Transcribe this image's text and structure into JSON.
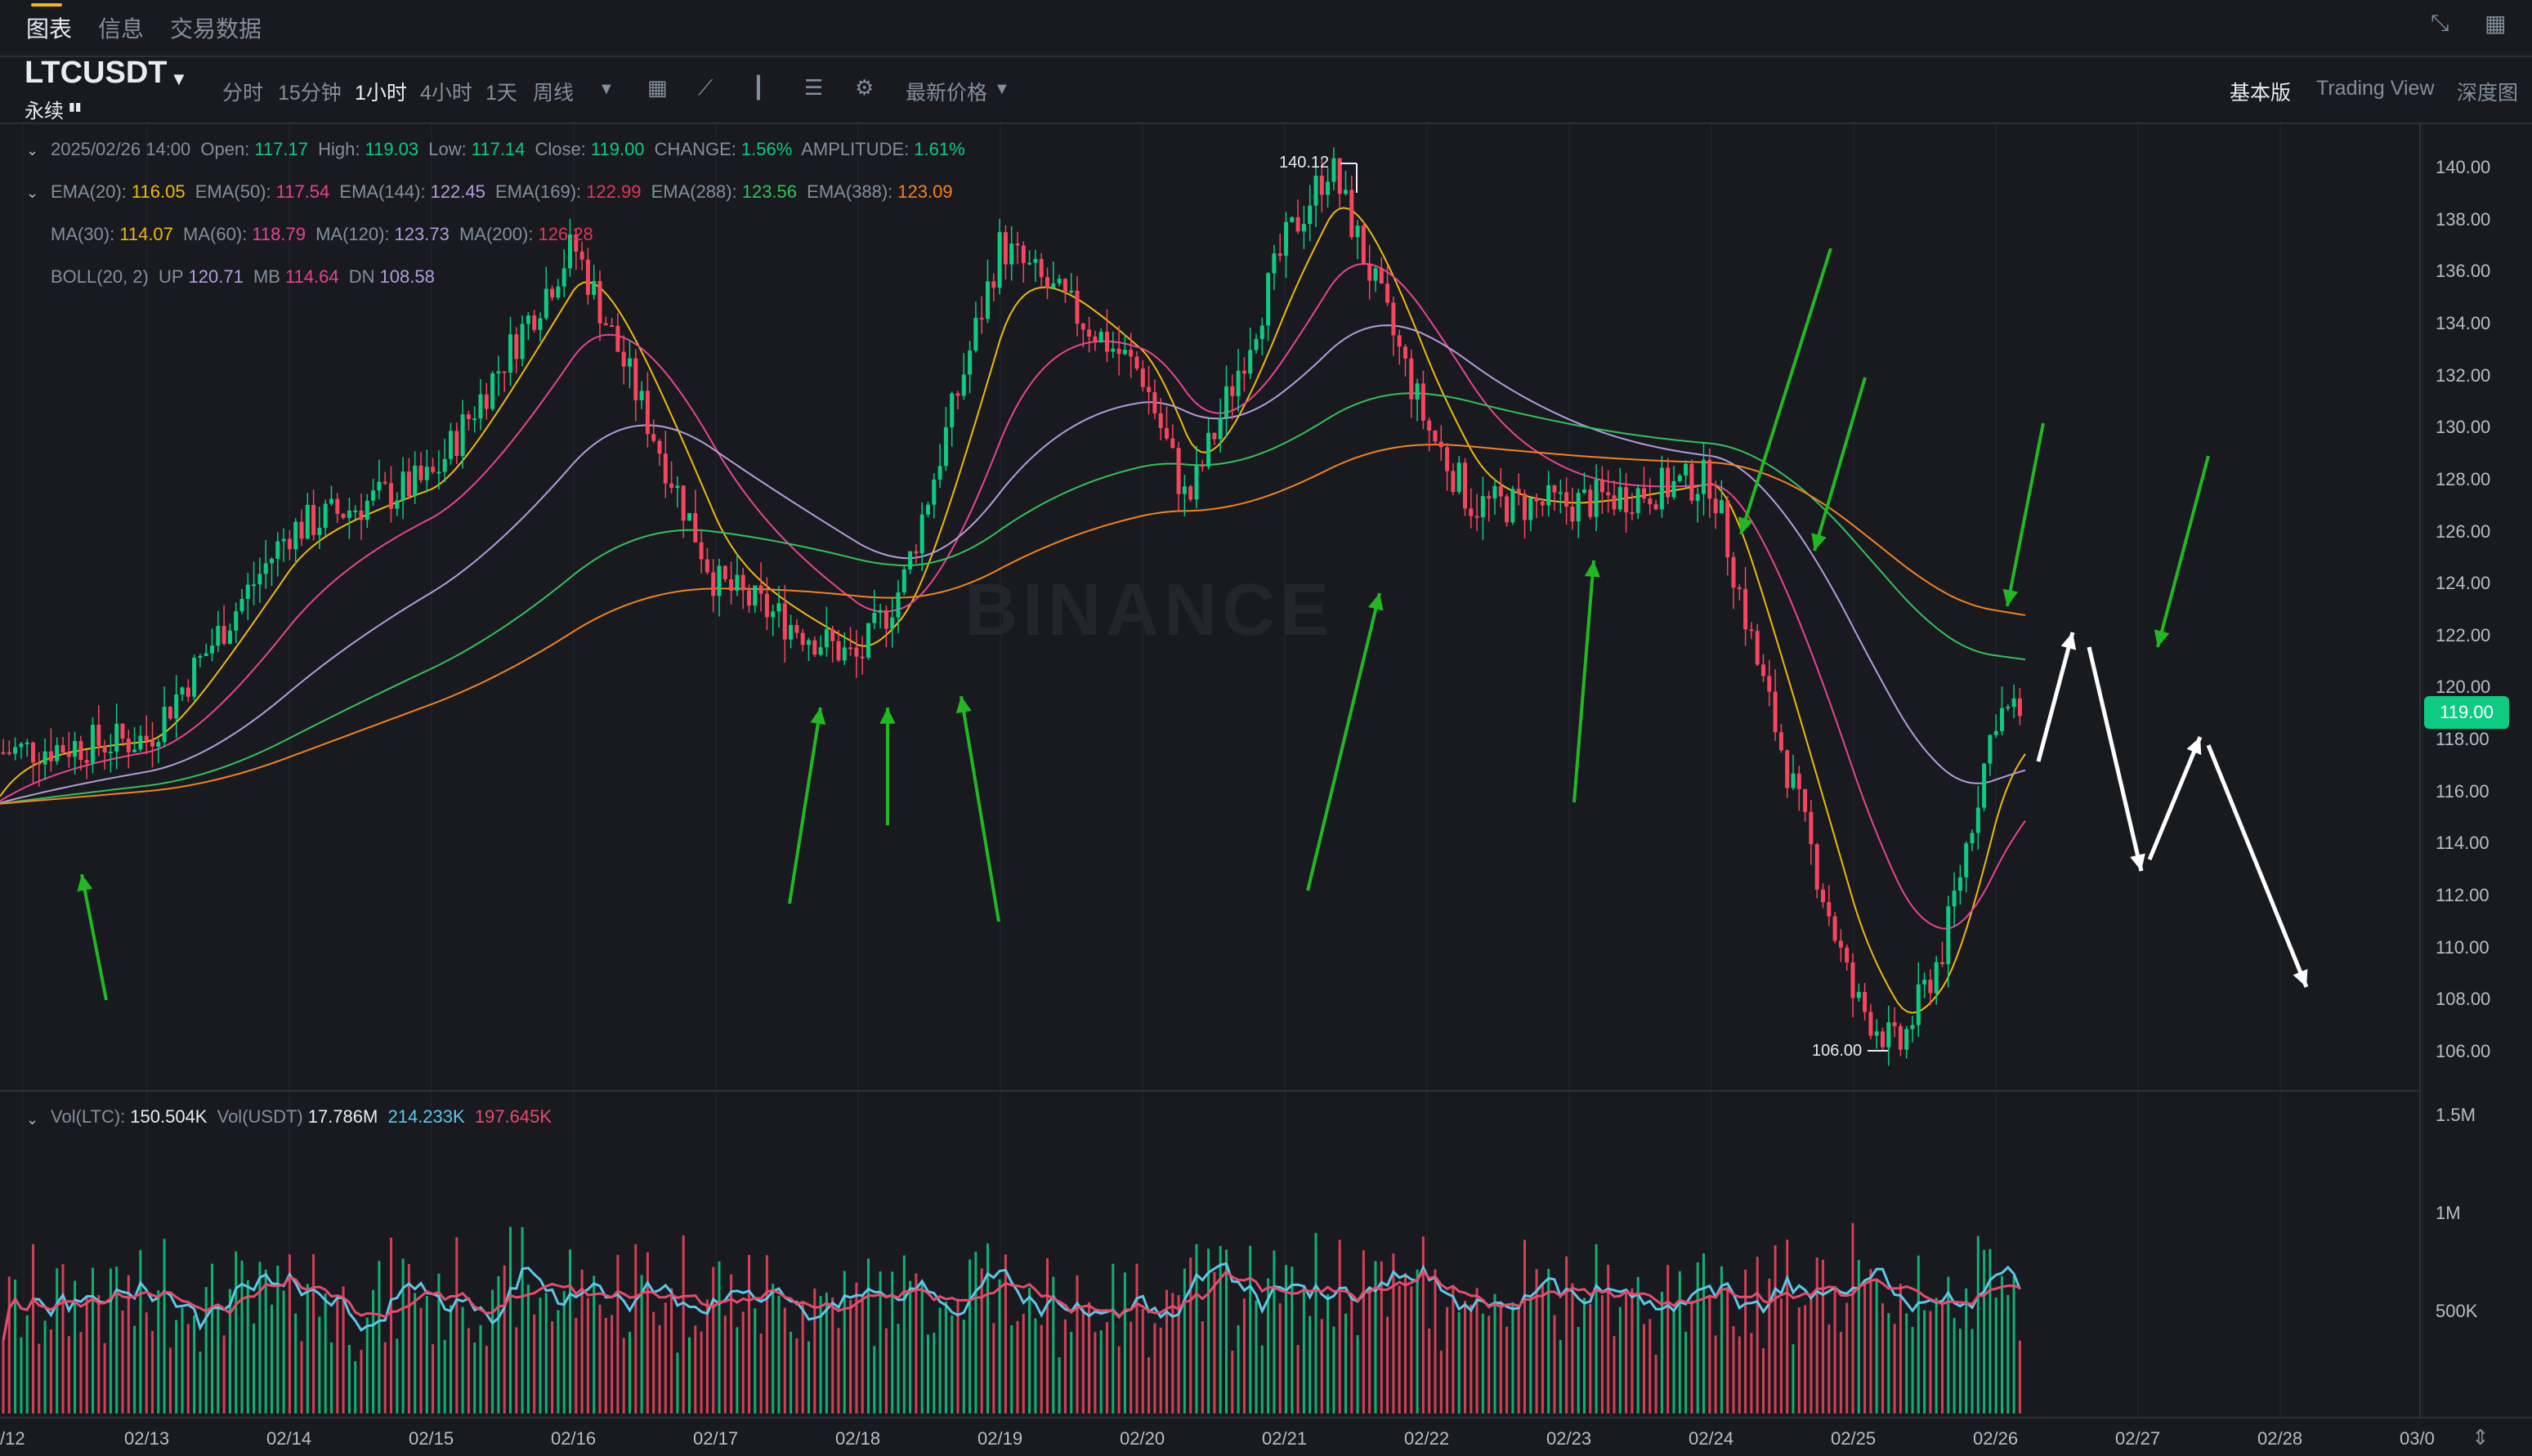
{
  "top_tabs": [
    "图表",
    "信息",
    "交易数据"
  ],
  "symbol": "LTCUSDT",
  "symbol_sub": "永续",
  "timeframes": [
    "分时",
    "15分钟",
    "1小时",
    "4小时",
    "1天",
    "周线"
  ],
  "active_timeframe": "1小时",
  "price_type": "最新价格",
  "views": [
    "基本版",
    "Trading View",
    "深度图"
  ],
  "active_view": "基本版",
  "ohlc": {
    "date": "2025/02/26 14:00",
    "open_label": "Open:",
    "open": "117.17",
    "high_label": "High:",
    "high": "119.03",
    "low_label": "Low:",
    "low": "117.14",
    "close_label": "Close:",
    "close": "119.00",
    "change_label": "CHANGE:",
    "change": "1.56%",
    "amp_label": "AMPLITUDE:",
    "amp": "1.61%"
  },
  "ema": [
    {
      "label": "EMA(20):",
      "value": "116.05",
      "color": "#f0b90b"
    },
    {
      "label": "EMA(50):",
      "value": "117.54",
      "color": "#e84393"
    },
    {
      "label": "EMA(144):",
      "value": "122.45",
      "color": "#b39ddb"
    },
    {
      "label": "EMA(169):",
      "value": "122.99",
      "color": "#e0375a"
    },
    {
      "label": "EMA(288):",
      "value": "123.56",
      "color": "#32c35a"
    },
    {
      "label": "EMA(388):",
      "value": "123.09",
      "color": "#f5821f"
    }
  ],
  "ma": [
    {
      "label": "MA(30):",
      "value": "114.07",
      "color": "#f0b90b"
    },
    {
      "label": "MA(60):",
      "value": "118.79",
      "color": "#e84393"
    },
    {
      "label": "MA(120):",
      "value": "123.73",
      "color": "#b39ddb"
    },
    {
      "label": "MA(200):",
      "value": "126.28",
      "color": "#e0375a"
    }
  ],
  "boll": {
    "label": "BOLL(20, 2)",
    "up_label": "UP",
    "up": "120.71",
    "mb_label": "MB",
    "mb": "114.64",
    "dn_label": "DN",
    "dn": "108.58",
    "up_color": "#b39ddb",
    "mb_color": "#e84393",
    "dn_color": "#b39ddb"
  },
  "volume": {
    "ltc_label": "Vol(LTC):",
    "ltc": "150.504K",
    "usdt_label": "Vol(USDT)",
    "usdt": "17.786M",
    "ma1": "214.233K",
    "ma2": "197.645K",
    "ma1_color": "#5bc8e8",
    "ma2_color": "#e84a6b"
  },
  "price_axis": [
    "140.00",
    "138.00",
    "136.00",
    "134.00",
    "132.00",
    "130.00",
    "128.00",
    "126.00",
    "124.00",
    "122.00",
    "120.00",
    "118.00",
    "116.00",
    "114.00",
    "112.00",
    "110.00",
    "108.00",
    "106.00"
  ],
  "volume_axis": [
    "1.5M",
    "1M",
    "500K"
  ],
  "current_price": "119.00",
  "extremes": {
    "high": "140.12",
    "low": "106.00"
  },
  "date_axis": [
    "/12",
    "02/13",
    "02/14",
    "02/15",
    "02/16",
    "02/17",
    "02/18",
    "02/19",
    "02/20",
    "02/21",
    "02/22",
    "02/23",
    "02/24",
    "02/25",
    "02/26",
    "02/27",
    "02/28",
    "03/0"
  ],
  "watermark": "BINANCE",
  "colors": {
    "up": "#0ecb81",
    "down": "#f6465d",
    "bg": "#181a20",
    "accent": "#f0b90b",
    "annotation_green": "#22b822",
    "annotation_white": "#ffffff"
  },
  "chart_data": {
    "type": "candlestick",
    "interval": "1h",
    "ylim": [
      105.5,
      141
    ],
    "key_points": [
      {
        "x": "02/12",
        "y": 117
      },
      {
        "x": "02/13",
        "y": 118
      },
      {
        "x": "02/14",
        "y": 126
      },
      {
        "x": "02/15",
        "y": 128
      },
      {
        "x": "02/16",
        "y": 137
      },
      {
        "x": "02/17",
        "y": 124
      },
      {
        "x": "02/18",
        "y": 121
      },
      {
        "x": "02/18",
        "y": 124
      },
      {
        "x": "02/19",
        "y": 137
      },
      {
        "x": "02/20",
        "y": 132
      },
      {
        "x": "02/20",
        "y": 127
      },
      {
        "x": "02/21",
        "y": 137
      },
      {
        "x": "02/21",
        "y": 140.12
      },
      {
        "x": "02/22",
        "y": 130
      },
      {
        "x": "02/22",
        "y": 127
      },
      {
        "x": "02/23",
        "y": 127
      },
      {
        "x": "02/24",
        "y": 128
      },
      {
        "x": "02/24",
        "y": 121
      },
      {
        "x": "02/25",
        "y": 108
      },
      {
        "x": "02/25",
        "y": 106.0
      },
      {
        "x": "02/25",
        "y": 110
      },
      {
        "x": "02/26",
        "y": 119
      }
    ]
  }
}
